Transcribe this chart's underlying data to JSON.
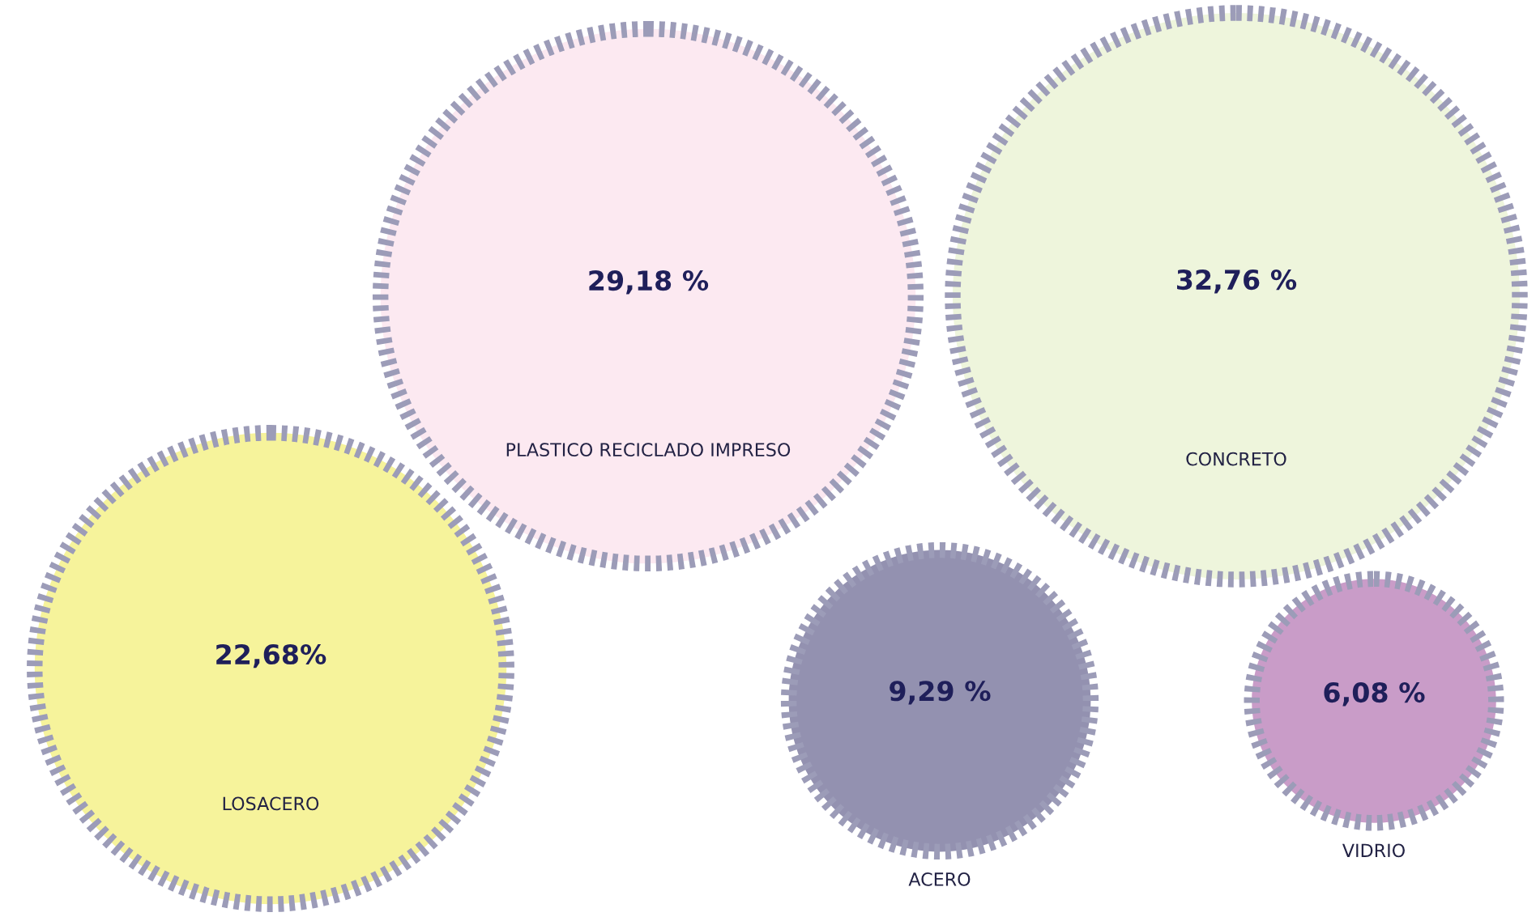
{
  "chart_data": {
    "type": "other",
    "categories": [
      "PLASTICO RECICLADO IMPRESO",
      "CONCRETO",
      "LOSACERO",
      "ACERO",
      "VIDRIO"
    ],
    "values": [
      29.18,
      32.76,
      22.68,
      9.29,
      6.08
    ],
    "value_labels": [
      "29,18 %",
      "32,76 %",
      "22,68%",
      "9,29 %",
      "6,08 %"
    ],
    "colors": [
      "#fce9f1",
      "#eef5dc",
      "#f6f39b",
      "#9391b0",
      "#c99cc8"
    ]
  }
}
